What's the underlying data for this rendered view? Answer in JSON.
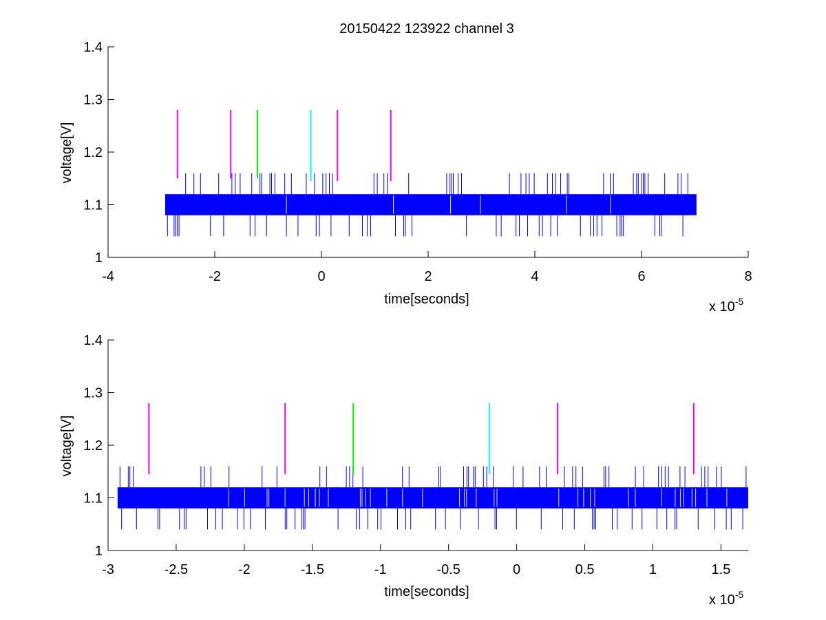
{
  "figure": {
    "title": "20150422 123922 channel 3",
    "colors": {
      "signal": "#0000ff",
      "marker_magenta": "#ff00ff",
      "marker_green": "#00ff00",
      "marker_cyan": "#00ffff",
      "axes": "#000000",
      "background": "#ffffff"
    }
  },
  "chart_data": [
    {
      "type": "line",
      "title": "20150422 123922 channel 3",
      "xlabel": "time[seconds]",
      "ylabel": "voltage[V]",
      "x_multiplier_base": "x 10",
      "x_multiplier_exp": "-5",
      "xlim": [
        -4e-05,
        8e-05
      ],
      "ylim": [
        1.0,
        1.4
      ],
      "xticks": [
        -4,
        -2,
        0,
        2,
        4,
        6,
        8
      ],
      "xtick_labels": [
        "-4",
        "-2",
        "0",
        "2",
        "4",
        "6",
        "8"
      ],
      "yticks": [
        1.0,
        1.1,
        1.2,
        1.3,
        1.4
      ],
      "ytick_labels": [
        "1",
        "1.1",
        "1.2",
        "1.3",
        "1.4"
      ],
      "grid": false,
      "series": [
        {
          "color": "#0000ff",
          "x_range": [
            -2.93e-05,
            7.03e-05
          ],
          "band": [
            1.08,
            1.12
          ],
          "spike_up": 1.16,
          "spike_down": 1.04
        }
      ],
      "markers": [
        {
          "x": -2.7e-05,
          "y0": 1.15,
          "y1": 1.28,
          "color": "#ff00ff"
        },
        {
          "x": -1.7e-05,
          "y0": 1.15,
          "y1": 1.28,
          "color": "#ff00ff"
        },
        {
          "x": -1.2e-05,
          "y0": 1.15,
          "y1": 1.28,
          "color": "#00ff00"
        },
        {
          "x": -2e-06,
          "y0": 1.145,
          "y1": 1.28,
          "color": "#00ffff"
        },
        {
          "x": 3e-06,
          "y0": 1.145,
          "y1": 1.28,
          "color": "#ff00ff"
        },
        {
          "x": 1.3e-05,
          "y0": 1.145,
          "y1": 1.28,
          "color": "#ff00ff"
        }
      ]
    },
    {
      "type": "line",
      "title": "",
      "xlabel": "time[seconds]",
      "ylabel": "voltage[V]",
      "x_multiplier_base": "x 10",
      "x_multiplier_exp": "-5",
      "xlim": [
        -3e-05,
        1.7e-05
      ],
      "ylim": [
        1.0,
        1.4
      ],
      "xticks": [
        -3,
        -2.5,
        -2,
        -1.5,
        -1,
        -0.5,
        0,
        0.5,
        1,
        1.5
      ],
      "xtick_labels": [
        "-3",
        "-2.5",
        "-2",
        "-1.5",
        "-1",
        "-0.5",
        "0",
        "0.5",
        "1",
        "1.5"
      ],
      "yticks": [
        1.0,
        1.1,
        1.2,
        1.3,
        1.4
      ],
      "ytick_labels": [
        "1",
        "1.1",
        "1.2",
        "1.3",
        "1.4"
      ],
      "grid": false,
      "series": [
        {
          "color": "#0000ff",
          "x_range": [
            -2.93e-05,
            1.7e-05
          ],
          "band": [
            1.08,
            1.12
          ],
          "spike_up": 1.16,
          "spike_down": 1.04
        }
      ],
      "markers": [
        {
          "x": -2.7e-05,
          "y0": 1.145,
          "y1": 1.28,
          "color": "#ff00ff"
        },
        {
          "x": -1.7e-05,
          "y0": 1.145,
          "y1": 1.28,
          "color": "#ff00ff"
        },
        {
          "x": -1.2e-05,
          "y0": 1.145,
          "y1": 1.28,
          "color": "#00ff00"
        },
        {
          "x": -2e-06,
          "y0": 1.145,
          "y1": 1.28,
          "color": "#00ffff"
        },
        {
          "x": 3e-06,
          "y0": 1.145,
          "y1": 1.28,
          "color": "#ff00ff"
        },
        {
          "x": 1.3e-05,
          "y0": 1.145,
          "y1": 1.28,
          "color": "#ff00ff"
        }
      ]
    }
  ]
}
